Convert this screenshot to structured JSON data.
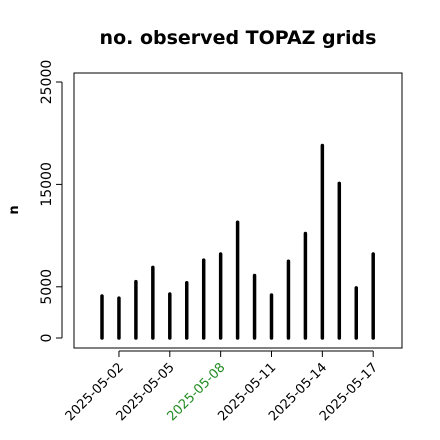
{
  "chart_data": {
    "type": "bar",
    "title": "no. observed TOPAZ grids",
    "xlabel": "",
    "ylabel": "n",
    "ylim": [
      0,
      26000
    ],
    "yticks": [
      0,
      5000,
      15000,
      25000
    ],
    "xtick_labels": [
      {
        "label": "2025-05-02",
        "color": "#000000"
      },
      {
        "label": "2025-05-05",
        "color": "#000000"
      },
      {
        "label": "2025-05-08",
        "color": "#228b22"
      },
      {
        "label": "2025-05-11",
        "color": "#000000"
      },
      {
        "label": "2025-05-14",
        "color": "#000000"
      },
      {
        "label": "2025-05-17",
        "color": "#000000"
      }
    ],
    "categories": [
      "2025-05-01",
      "2025-05-02",
      "2025-05-03",
      "2025-05-04",
      "2025-05-05",
      "2025-05-06",
      "2025-05-07",
      "2025-05-08",
      "2025-05-09",
      "2025-05-10",
      "2025-05-11",
      "2025-05-12",
      "2025-05-13",
      "2025-05-14",
      "2025-05-15",
      "2025-05-16",
      "2025-05-17"
    ],
    "values": [
      4100,
      3900,
      5500,
      6900,
      4300,
      5400,
      7600,
      8200,
      11300,
      6100,
      4200,
      7500,
      10200,
      18800,
      15100,
      4900,
      8200
    ],
    "bar_color": "#000000",
    "grid": false
  }
}
